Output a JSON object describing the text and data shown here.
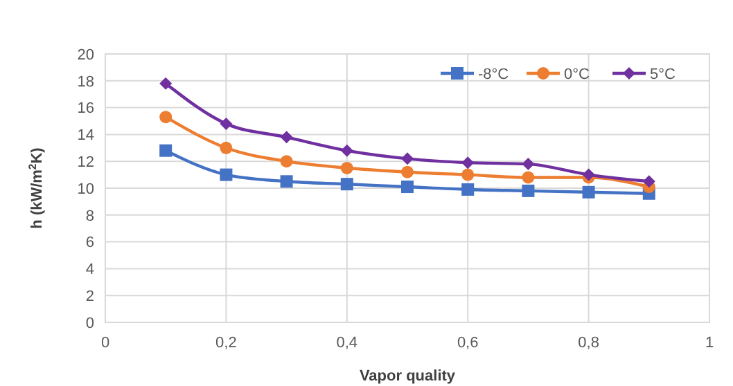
{
  "chart_data": {
    "type": "line",
    "xlabel": "Vapor quality",
    "ylabel": "h (kW/m$^{2}$K)",
    "x": [
      0.1,
      0.2,
      0.3,
      0.4,
      0.5,
      0.6,
      0.7,
      0.8,
      0.9
    ],
    "series": [
      {
        "name": "-8°C",
        "color": "#4472c4",
        "marker": "square",
        "values": [
          12.8,
          11.0,
          10.5,
          10.3,
          10.1,
          9.9,
          9.8,
          9.7,
          9.6
        ]
      },
      {
        "name": "0°C",
        "color": "#ed7d31",
        "marker": "circle",
        "values": [
          15.3,
          13.0,
          12.0,
          11.5,
          11.2,
          11.0,
          10.8,
          10.8,
          10.1
        ]
      },
      {
        "name": "5°C",
        "color": "#7030a0",
        "marker": "diamond",
        "values": [
          17.8,
          14.8,
          13.8,
          12.8,
          12.2,
          11.9,
          11.8,
          11.0,
          10.5
        ]
      }
    ],
    "xlim": [
      0,
      1
    ],
    "xticks": [
      0,
      {
        "value": 0.2,
        "label": "0,2"
      },
      {
        "value": 0.4,
        "label": "0,4"
      },
      {
        "value": 0.6,
        "label": "0,6"
      },
      {
        "value": 0.8,
        "label": "0,8"
      },
      1
    ],
    "ylim": [
      0,
      20
    ],
    "yticks": [
      0,
      2,
      4,
      6,
      8,
      10,
      12,
      14,
      16,
      18,
      20
    ],
    "grid": true,
    "legend": "top right",
    "line_style": "solid"
  }
}
